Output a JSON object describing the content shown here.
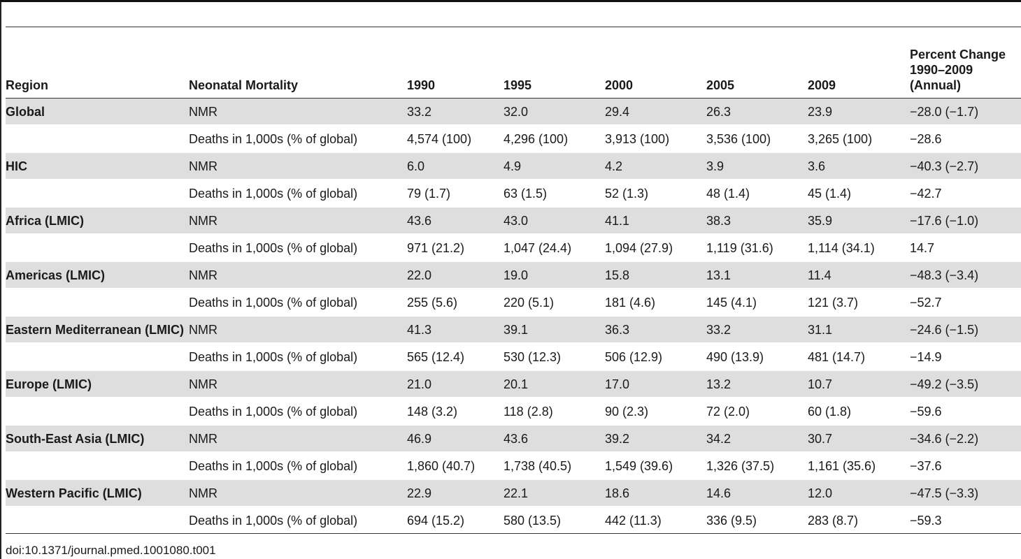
{
  "table": {
    "headers": {
      "region": "Region",
      "metric": "Neonatal Mortality",
      "y1990": "1990",
      "y1995": "1995",
      "y2000": "2000",
      "y2005": "2005",
      "y2009": "2009",
      "change_line1": "Percent Change",
      "change_line2": "1990–2009",
      "change_line3": "(Annual)"
    },
    "rows": [
      {
        "region": "Global",
        "metric": "NMR",
        "y1990": "33.2",
        "y1995": "32.0",
        "y2000": "29.4",
        "y2005": "26.3",
        "y2009": "23.9",
        "change": "−28.0 (−1.7)"
      },
      {
        "region": "",
        "metric": "Deaths in 1,000s (% of global)",
        "y1990": "4,574 (100)",
        "y1995": "4,296 (100)",
        "y2000": "3,913 (100)",
        "y2005": "3,536 (100)",
        "y2009": "3,265 (100)",
        "change": "−28.6"
      },
      {
        "region": "HIC",
        "metric": "NMR",
        "y1990": "6.0",
        "y1995": "4.9",
        "y2000": "4.2",
        "y2005": "3.9",
        "y2009": "3.6",
        "change": "−40.3 (−2.7)"
      },
      {
        "region": "",
        "metric": "Deaths in 1,000s (% of global)",
        "y1990": "79 (1.7)",
        "y1995": "63 (1.5)",
        "y2000": "52 (1.3)",
        "y2005": "48 (1.4)",
        "y2009": "45 (1.4)",
        "change": "−42.7"
      },
      {
        "region": "Africa (LMIC)",
        "metric": "NMR",
        "y1990": "43.6",
        "y1995": "43.0",
        "y2000": "41.1",
        "y2005": "38.3",
        "y2009": "35.9",
        "change": "−17.6 (−1.0)"
      },
      {
        "region": "",
        "metric": "Deaths in 1,000s (% of global)",
        "y1990": "971 (21.2)",
        "y1995": "1,047 (24.4)",
        "y2000": "1,094 (27.9)",
        "y2005": "1,119 (31.6)",
        "y2009": "1,114 (34.1)",
        "change": "14.7"
      },
      {
        "region": "Americas (LMIC)",
        "metric": "NMR",
        "y1990": "22.0",
        "y1995": "19.0",
        "y2000": "15.8",
        "y2005": "13.1",
        "y2009": "11.4",
        "change": "−48.3 (−3.4)"
      },
      {
        "region": "",
        "metric": "Deaths in 1,000s (% of global)",
        "y1990": "255 (5.6)",
        "y1995": "220 (5.1)",
        "y2000": "181 (4.6)",
        "y2005": "145 (4.1)",
        "y2009": "121 (3.7)",
        "change": "−52.7"
      },
      {
        "region": "Eastern Mediterranean (LMIC)",
        "metric": "NMR",
        "y1990": "41.3",
        "y1995": "39.1",
        "y2000": "36.3",
        "y2005": "33.2",
        "y2009": "31.1",
        "change": "−24.6 (−1.5)"
      },
      {
        "region": "",
        "metric": "Deaths in 1,000s (% of global)",
        "y1990": "565 (12.4)",
        "y1995": "530 (12.3)",
        "y2000": "506 (12.9)",
        "y2005": "490 (13.9)",
        "y2009": "481 (14.7)",
        "change": "−14.9"
      },
      {
        "region": "Europe (LMIC)",
        "metric": "NMR",
        "y1990": "21.0",
        "y1995": "20.1",
        "y2000": "17.0",
        "y2005": "13.2",
        "y2009": "10.7",
        "change": "−49.2 (−3.5)"
      },
      {
        "region": "",
        "metric": "Deaths in 1,000s (% of global)",
        "y1990": "148 (3.2)",
        "y1995": "118 (2.8)",
        "y2000": "90 (2.3)",
        "y2005": "72 (2.0)",
        "y2009": "60 (1.8)",
        "change": "−59.6"
      },
      {
        "region": "South-East Asia (LMIC)",
        "metric": "NMR",
        "y1990": "46.9",
        "y1995": "43.6",
        "y2000": "39.2",
        "y2005": "34.2",
        "y2009": "30.7",
        "change": "−34.6 (−2.2)"
      },
      {
        "region": "",
        "metric": "Deaths in 1,000s (% of global)",
        "y1990": "1,860 (40.7)",
        "y1995": "1,738 (40.5)",
        "y2000": "1,549 (39.6)",
        "y2005": "1,326 (37.5)",
        "y2009": "1,161 (35.6)",
        "change": "−37.6"
      },
      {
        "region": "Western Pacific (LMIC)",
        "metric": "NMR",
        "y1990": "22.9",
        "y1995": "22.1",
        "y2000": "18.6",
        "y2005": "14.6",
        "y2009": "12.0",
        "change": "−47.5 (−3.3)"
      },
      {
        "region": "",
        "metric": "Deaths in 1,000s (% of global)",
        "y1990": "694 (15.2)",
        "y1995": "580 (13.5)",
        "y2000": "442 (11.3)",
        "y2005": "336 (9.5)",
        "y2009": "283 (8.7)",
        "change": "−59.3"
      }
    ]
  },
  "footer": {
    "doi": "doi:10.1371/journal.pmed.1001080.t001"
  }
}
